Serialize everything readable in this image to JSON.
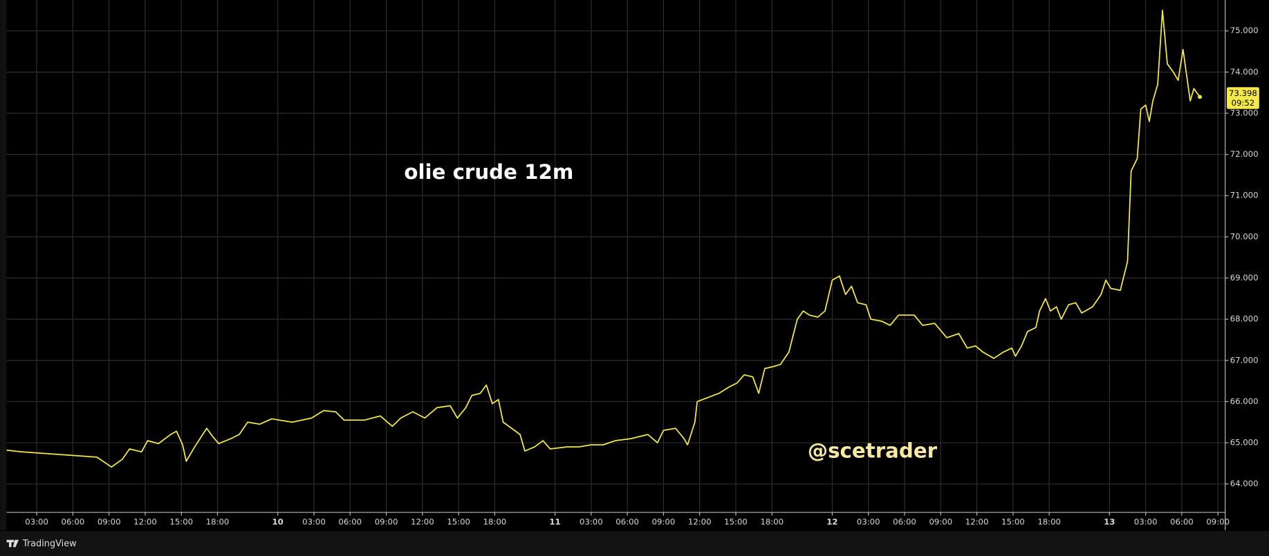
{
  "chart_data": {
    "type": "line",
    "title": "olie crude 12m",
    "watermark": "@scetrader",
    "brand": "TradingView",
    "color": "#f5e94a",
    "grid": true,
    "x": [
      0.5,
      1.7,
      8.0,
      9.2,
      10.1,
      10.7,
      11.7,
      12.2,
      13.1,
      14.1,
      14.6,
      15.1,
      15.4,
      16.1,
      17.1,
      17.6,
      18.1,
      19.1,
      19.8,
      20.5,
      21.5,
      22.5,
      24.2,
      25.8,
      26.8,
      27.8,
      28.5,
      30.2,
      31.5,
      32.5,
      33.2,
      34.2,
      35.2,
      36.2,
      37.3,
      37.9,
      38.6,
      39.1,
      39.8,
      40.3,
      40.8,
      41.3,
      41.7,
      42.4,
      43.1,
      43.5,
      44.3,
      45.0,
      45.6,
      47.0,
      48.0,
      49.0,
      50.0,
      51.0,
      52.3,
      53.7,
      54.5,
      55.0,
      56.0,
      56.7,
      57.0,
      57.6,
      57.8,
      58.7,
      59.6,
      60.4,
      61.1,
      61.7,
      62.4,
      62.9,
      63.4,
      64.1,
      64.7,
      65.4,
      66.1,
      66.6,
      67.1,
      67.8,
      68.4,
      69.0,
      69.6,
      70.1,
      70.6,
      71.1,
      71.8,
      72.2,
      73.1,
      73.8,
      74.5,
      75.8,
      76.5,
      77.5,
      78.5,
      79.5,
      80.2,
      80.9,
      81.5,
      82.4,
      83.2,
      83.9,
      84.2,
      84.7,
      85.2,
      85.9,
      86.2,
      86.7,
      87.1,
      87.6,
      88.0,
      88.6,
      89.2,
      89.7,
      90.6,
      91.3,
      91.7,
      92.1,
      92.9,
      93.5,
      93.8,
      94.3,
      94.6,
      95.0,
      95.3,
      95.6,
      96.0,
      96.4,
      96.8,
      97.3,
      97.7,
      98.1,
      98.7,
      99.0,
      99.5
    ],
    "values": [
      64.82,
      64.78,
      64.65,
      64.41,
      64.6,
      64.85,
      64.78,
      65.05,
      64.98,
      65.2,
      65.28,
      64.95,
      64.55,
      64.9,
      65.35,
      65.15,
      64.98,
      65.1,
      65.2,
      65.5,
      65.45,
      65.58,
      65.5,
      65.6,
      65.78,
      65.75,
      65.55,
      65.55,
      65.65,
      65.4,
      65.6,
      65.75,
      65.6,
      65.85,
      65.9,
      65.6,
      65.85,
      66.15,
      66.2,
      66.4,
      65.95,
      66.05,
      65.5,
      65.35,
      65.2,
      64.8,
      64.9,
      65.05,
      64.85,
      64.9,
      64.9,
      64.95,
      64.95,
      65.05,
      65.1,
      65.2,
      65.0,
      65.3,
      65.35,
      65.1,
      64.95,
      65.5,
      66.0,
      66.1,
      66.2,
      66.35,
      66.45,
      66.65,
      66.6,
      66.2,
      66.8,
      66.85,
      66.9,
      67.2,
      68.0,
      68.2,
      68.1,
      68.05,
      68.2,
      68.95,
      69.05,
      68.6,
      68.8,
      68.4,
      68.35,
      68.0,
      67.95,
      67.85,
      68.1,
      68.1,
      67.85,
      67.9,
      67.55,
      67.65,
      67.3,
      67.35,
      67.2,
      67.05,
      67.2,
      67.3,
      67.1,
      67.35,
      67.7,
      67.8,
      68.2,
      68.5,
      68.2,
      68.3,
      68.0,
      68.35,
      68.4,
      68.15,
      68.3,
      68.6,
      68.95,
      68.75,
      68.7,
      69.4,
      71.6,
      71.9,
      73.1,
      73.2,
      72.8,
      73.3,
      73.7,
      75.5,
      74.2,
      74.0,
      73.8,
      74.55,
      73.3,
      73.6,
      73.398
    ],
    "last_price": {
      "value": 73.398,
      "label": "73.398",
      "time": "09:52"
    },
    "xlim": [
      0.5,
      101.6
    ],
    "ylim": [
      63.31,
      75.75
    ],
    "yticks": [
      {
        "value": 64,
        "label": "64.000"
      },
      {
        "value": 65,
        "label": "65.000"
      },
      {
        "value": 66,
        "label": "66.000"
      },
      {
        "value": 67,
        "label": "67.000"
      },
      {
        "value": 68,
        "label": "68.000"
      },
      {
        "value": 69,
        "label": "69.000"
      },
      {
        "value": 70,
        "label": "70.000"
      },
      {
        "value": 71,
        "label": "71.000"
      },
      {
        "value": 72,
        "label": "72.000"
      },
      {
        "value": 73,
        "label": "73.000"
      },
      {
        "value": 74,
        "label": "74.000"
      },
      {
        "value": 75,
        "label": "75.000"
      }
    ],
    "xticks": [
      {
        "value": 3,
        "label": "03:00"
      },
      {
        "value": 6,
        "label": "06:00"
      },
      {
        "value": 9,
        "label": "09:00"
      },
      {
        "value": 12,
        "label": "12:00"
      },
      {
        "value": 15,
        "label": "15:00"
      },
      {
        "value": 18,
        "label": "18:00"
      },
      {
        "value": 23,
        "label": "10"
      },
      {
        "value": 26,
        "label": "03:00"
      },
      {
        "value": 29,
        "label": "06:00"
      },
      {
        "value": 32,
        "label": "09:00"
      },
      {
        "value": 35,
        "label": "12:00"
      },
      {
        "value": 38,
        "label": "15:00"
      },
      {
        "value": 41,
        "label": "18:00"
      },
      {
        "value": 46,
        "label": "11"
      },
      {
        "value": 49,
        "label": "03:00"
      },
      {
        "value": 52,
        "label": "06:00"
      },
      {
        "value": 55,
        "label": "09:00"
      },
      {
        "value": 58,
        "label": "12:00"
      },
      {
        "value": 61,
        "label": "15:00"
      },
      {
        "value": 64,
        "label": "18:00"
      },
      {
        "value": 69,
        "label": "12"
      },
      {
        "value": 72,
        "label": "03:00"
      },
      {
        "value": 75,
        "label": "06:00"
      },
      {
        "value": 78,
        "label": "09:00"
      },
      {
        "value": 81,
        "label": "12:00"
      },
      {
        "value": 84,
        "label": "15:00"
      },
      {
        "value": 87,
        "label": "18:00"
      },
      {
        "value": 92,
        "label": "13"
      },
      {
        "value": 95,
        "label": "03:00"
      },
      {
        "value": 98,
        "label": "06:00"
      },
      {
        "value": 101,
        "label": "09:00"
      }
    ]
  }
}
